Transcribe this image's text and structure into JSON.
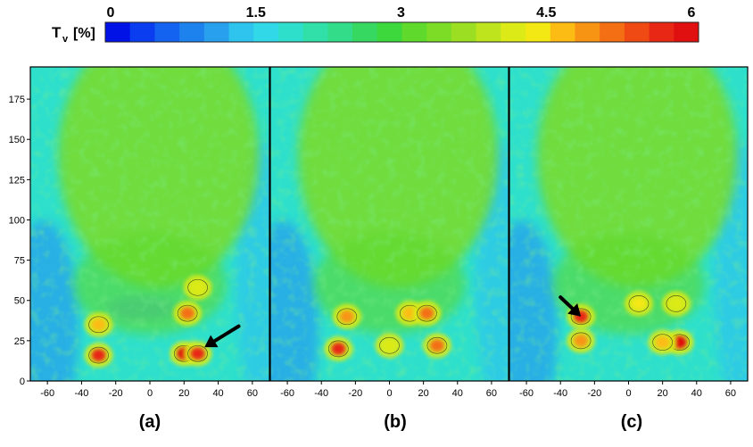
{
  "chart_data": {
    "type": "heatmap",
    "colorbar": {
      "label_main": "T",
      "label_sub": "v",
      "label_unit": "[%]",
      "range": [
        0,
        6
      ],
      "ticks": [
        0,
        1.5,
        3,
        4.5,
        6
      ],
      "tick_labels": [
        "0",
        "1.5",
        "3",
        "4.5",
        "6"
      ],
      "colors": [
        "#0012e6",
        "#0a3cf0",
        "#1463f0",
        "#1e82ee",
        "#28a0ee",
        "#2ec4ee",
        "#30d8e8",
        "#2ee0cc",
        "#30e0a8",
        "#33dc88",
        "#36d862",
        "#3cd83c",
        "#5ed92c",
        "#7cdc26",
        "#9cde22",
        "#bee41e",
        "#dcea18",
        "#f4e814",
        "#fcbc14",
        "#f89414",
        "#f46e14",
        "#f04a14",
        "#e82814",
        "#e01010"
      ]
    },
    "xlim": [
      -70,
      70
    ],
    "ylim": [
      0,
      195
    ],
    "x_ticks": [
      -60,
      -40,
      -20,
      0,
      20,
      40,
      60
    ],
    "x_tick_labels": [
      "-60",
      "-40",
      "-20",
      "0",
      "20",
      "40",
      "60"
    ],
    "y_ticks": [
      0,
      25,
      50,
      75,
      100,
      125,
      150,
      175
    ],
    "y_tick_labels": [
      "0",
      "25",
      "50",
      "75",
      "100",
      "125",
      "150",
      "175"
    ],
    "panels": [
      {
        "label": "(a)",
        "hotspots": [
          {
            "x": -30,
            "y": 16,
            "value": 5.6
          },
          {
            "x": -30,
            "y": 35,
            "value": 4.6
          },
          {
            "x": 20,
            "y": 17,
            "value": 5.8
          },
          {
            "x": 28,
            "y": 17,
            "value": 5.7
          },
          {
            "x": 22,
            "y": 42,
            "value": 5.0
          },
          {
            "x": 28,
            "y": 58,
            "value": 4.2
          }
        ],
        "arrow": {
          "from": [
            52,
            34
          ],
          "to": [
            32,
            21
          ]
        }
      },
      {
        "label": "(b)",
        "hotspots": [
          {
            "x": -30,
            "y": 20,
            "value": 5.5
          },
          {
            "x": -25,
            "y": 40,
            "value": 4.8
          },
          {
            "x": 12,
            "y": 42,
            "value": 4.5
          },
          {
            "x": 22,
            "y": 42,
            "value": 5.2
          },
          {
            "x": 28,
            "y": 22,
            "value": 5.2
          },
          {
            "x": 0,
            "y": 22,
            "value": 4.2
          }
        ]
      },
      {
        "label": "(c)",
        "hotspots": [
          {
            "x": -28,
            "y": 40,
            "value": 5.6
          },
          {
            "x": -28,
            "y": 25,
            "value": 4.8
          },
          {
            "x": 6,
            "y": 48,
            "value": 4.4
          },
          {
            "x": 30,
            "y": 24,
            "value": 5.8
          },
          {
            "x": 20,
            "y": 24,
            "value": 4.5
          },
          {
            "x": 28,
            "y": 48,
            "value": 4.0
          }
        ],
        "arrow": {
          "from": [
            -40,
            52
          ],
          "to": [
            -28,
            40
          ]
        }
      }
    ]
  }
}
